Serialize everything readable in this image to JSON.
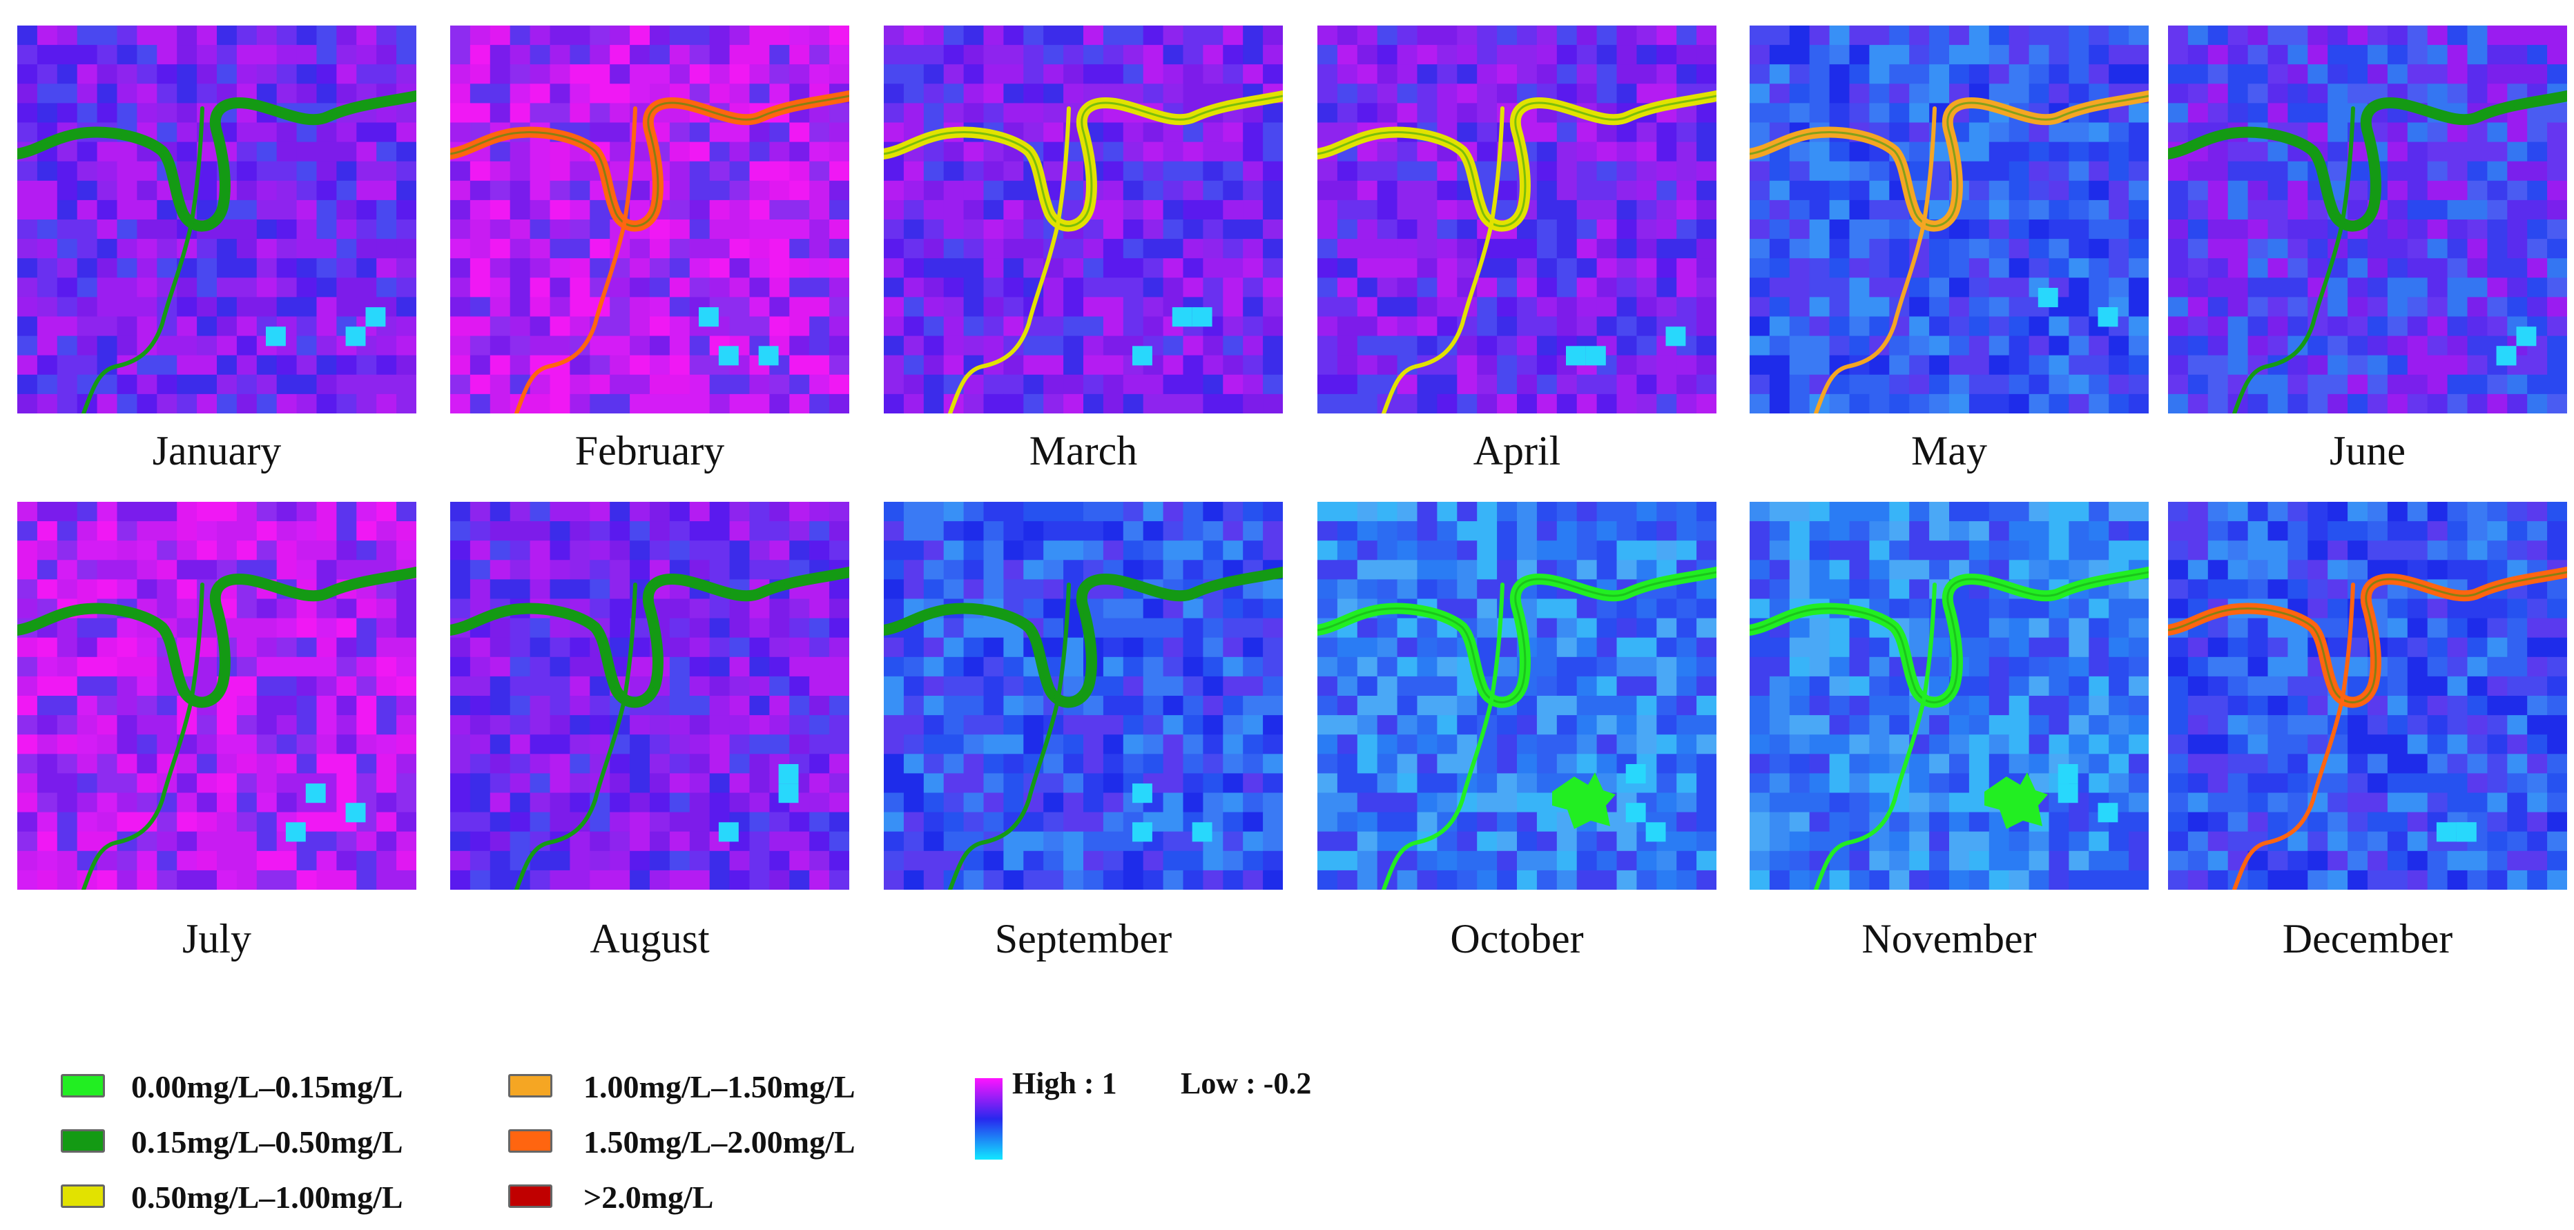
{
  "map_panels": [
    {
      "month": "January",
      "river_class": "0.15mg/L–0.50mg/L",
      "base_tone": "purple"
    },
    {
      "month": "February",
      "river_class": "1.50mg/L–2.00mg/L",
      "base_tone": "magenta"
    },
    {
      "month": "March",
      "river_class": "0.50mg/L–1.00mg/L",
      "base_tone": "purple"
    },
    {
      "month": "April",
      "river_class": "0.50mg/L–1.00mg/L",
      "base_tone": "purple"
    },
    {
      "month": "May",
      "river_class": "1.00mg/L–1.50mg/L",
      "base_tone": "blue"
    },
    {
      "month": "June",
      "river_class": "0.15mg/L–0.50mg/L",
      "base_tone": "blue-purple"
    },
    {
      "month": "July",
      "river_class": "0.15mg/L–0.50mg/L",
      "base_tone": "magenta"
    },
    {
      "month": "August",
      "river_class": "0.15mg/L–0.50mg/L",
      "base_tone": "purple"
    },
    {
      "month": "September",
      "river_class": "0.15mg/L–0.50mg/L",
      "base_tone": "blue"
    },
    {
      "month": "October",
      "river_class": "0.00mg/L–0.15mg/L",
      "base_tone": "light-blue"
    },
    {
      "month": "November",
      "river_class": "0.00mg/L–0.15mg/L",
      "base_tone": "light-blue"
    },
    {
      "month": "December",
      "river_class": "1.50mg/L–2.00mg/L",
      "base_tone": "blue"
    }
  ],
  "legend": {
    "classes": [
      {
        "label": "0.00mg/L–0.15mg/L",
        "color": "#22ee22"
      },
      {
        "label": "0.15mg/L–0.50mg/L",
        "color": "#149a14"
      },
      {
        "label": "0.50mg/L–1.00mg/L",
        "color": "#e2e200"
      },
      {
        "label": "1.00mg/L–1.50mg/L",
        "color": "#f5a623"
      },
      {
        "label": "1.50mg/L–2.00mg/L",
        "color": "#ff6510"
      },
      {
        "label": ">2.0mg/L",
        "color": "#c00000"
      }
    ],
    "colorbar": {
      "high_label": "High : 1",
      "low_label": "Low : -0.2",
      "colors": [
        "#ff14ff",
        "#2828ee",
        "#12e8ff"
      ]
    }
  }
}
